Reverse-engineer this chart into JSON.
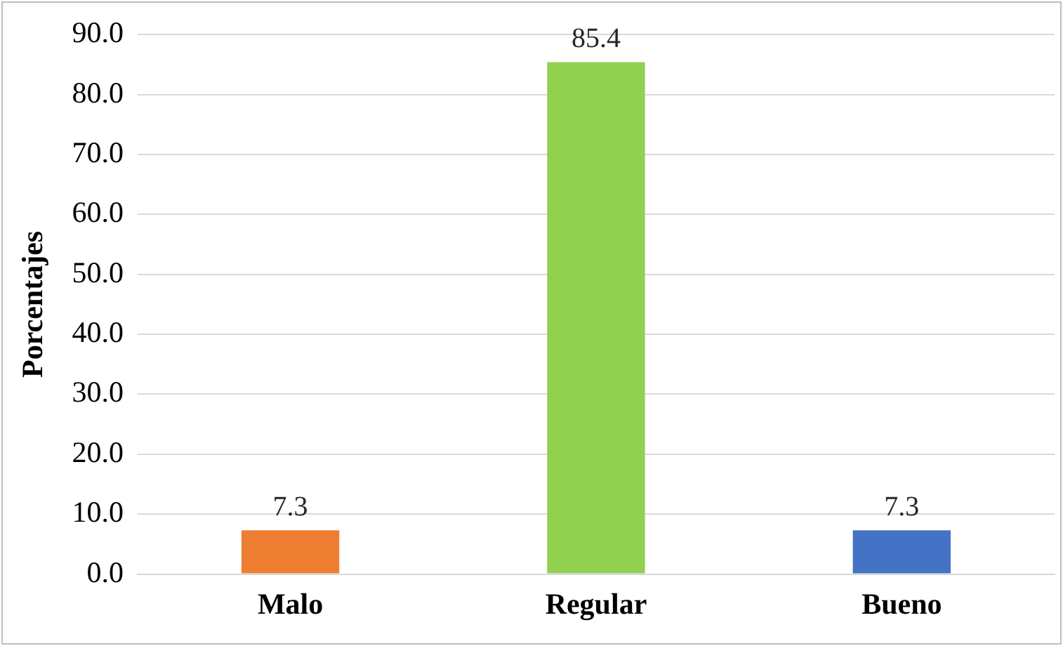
{
  "chart_data": {
    "type": "bar",
    "ylabel": "Porcentajes",
    "categories": [
      "Malo",
      "Regular",
      "Bueno"
    ],
    "values": [
      7.3,
      85.4,
      7.3
    ],
    "colors": [
      "#ed7d31",
      "#92d050",
      "#4472c4"
    ],
    "ylim": [
      0,
      90
    ],
    "yticks": [
      {
        "value": 0,
        "label": "0.0"
      },
      {
        "value": 10,
        "label": "10.0"
      },
      {
        "value": 20,
        "label": "20.0"
      },
      {
        "value": 30,
        "label": "30.0"
      },
      {
        "value": 40,
        "label": "40.0"
      },
      {
        "value": 50,
        "label": "50.0"
      },
      {
        "value": 60,
        "label": "60.0"
      },
      {
        "value": 70,
        "label": "70.0"
      },
      {
        "value": 80,
        "label": "80.0"
      },
      {
        "value": 90,
        "label": "90.0"
      }
    ],
    "grid": "y",
    "legend": false,
    "data_labels": true
  }
}
